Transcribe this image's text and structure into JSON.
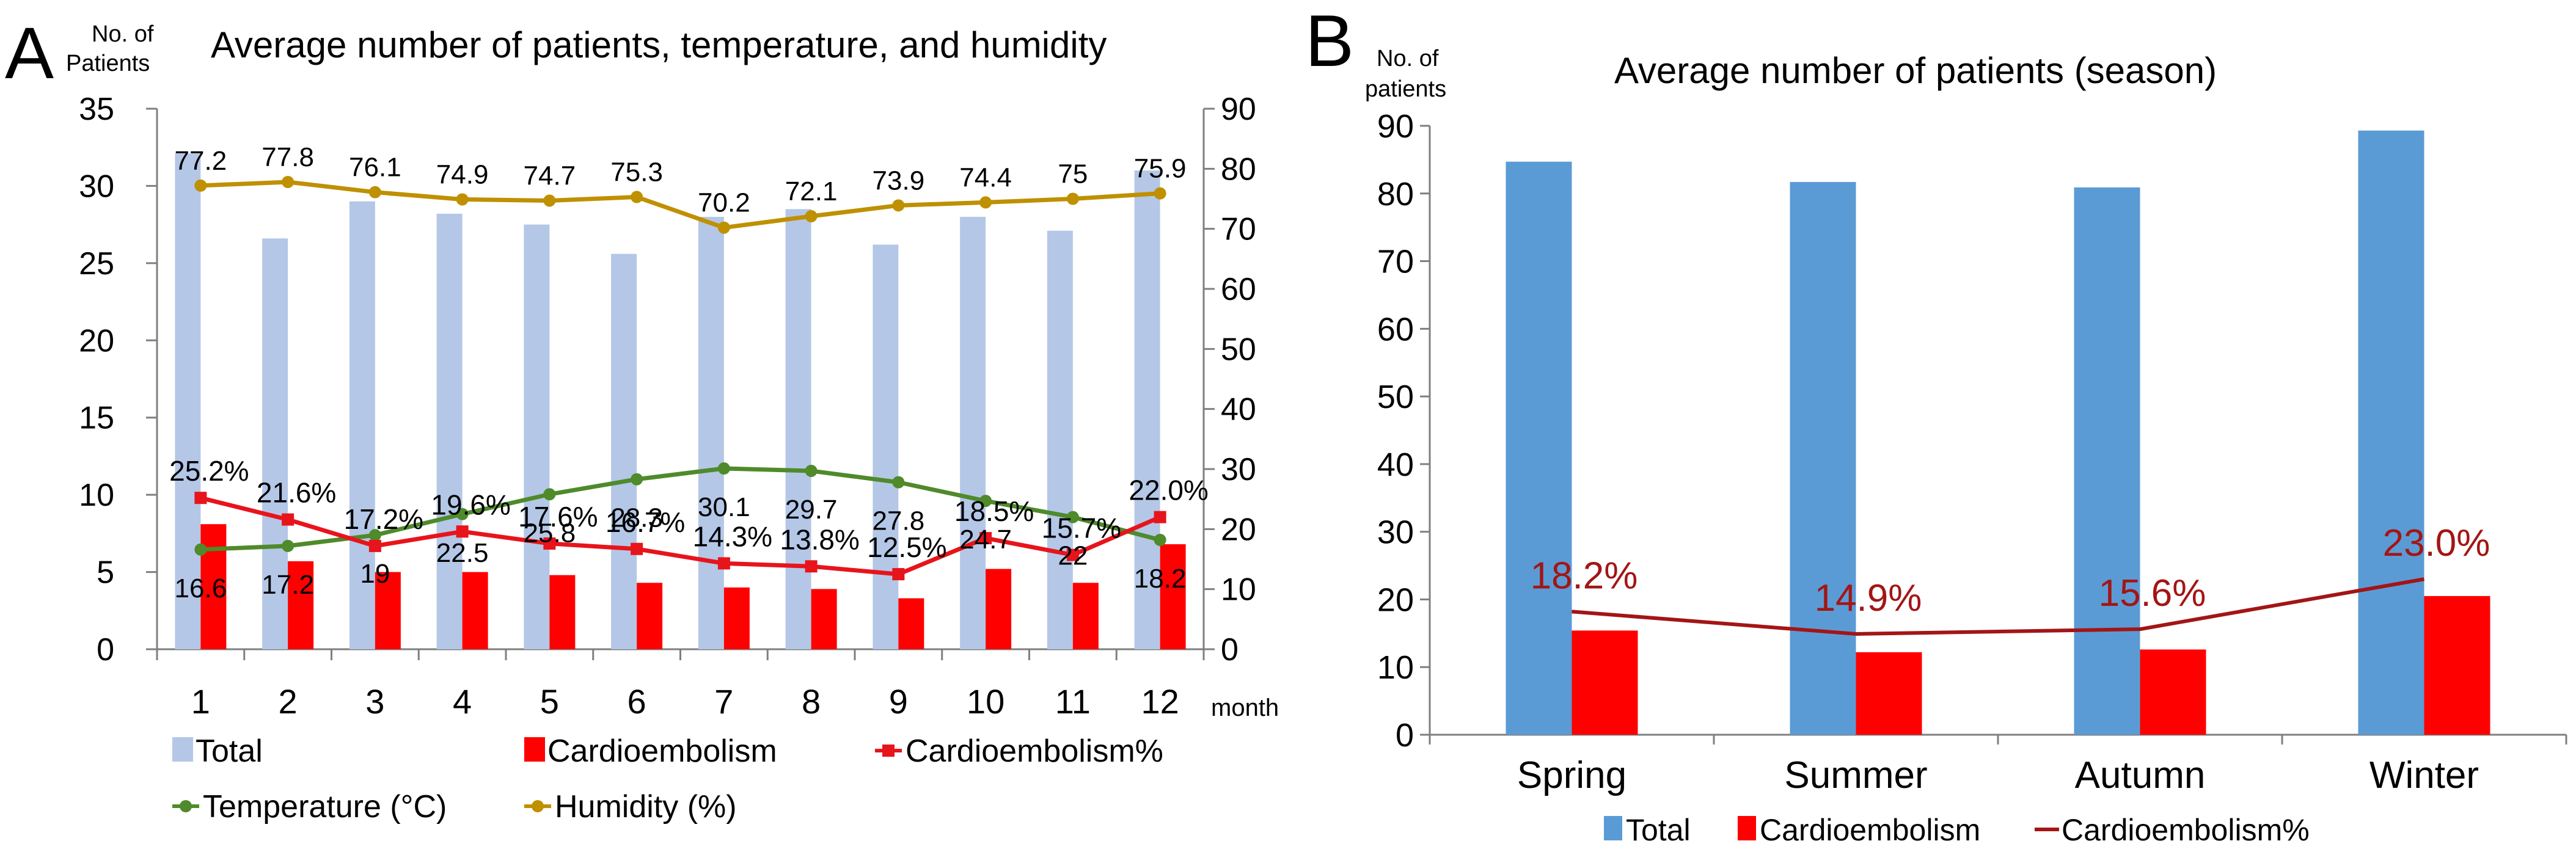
{
  "panels": {
    "a_letter": "A",
    "b_letter": "B"
  },
  "colors": {
    "total_light": "#b4c7e7",
    "total_blue": "#5b9bd5",
    "cardio_red": "#ff0000",
    "cardio_line_red": "#e8141b",
    "cardio_dark_red": "#a31515",
    "temperature_green": "#4f8a2b",
    "humidity_gold": "#bf9000",
    "axis_gray": "#7f7f7f",
    "text": "#000000"
  },
  "chart_data": [
    {
      "type": "bar",
      "title": "Average number of patients, temperature, and humidity",
      "ylabel": "No. of Patients",
      "xlabel": "month",
      "categories": [
        "1",
        "2",
        "3",
        "4",
        "5",
        "6",
        "7",
        "8",
        "9",
        "10",
        "11",
        "12"
      ],
      "y_ticks": [
        "0",
        "5",
        "10",
        "15",
        "20",
        "25",
        "30",
        "35"
      ],
      "ylim": [
        0,
        35
      ],
      "y2_ticks": [
        "0",
        "10",
        "20",
        "30",
        "40",
        "50",
        "60",
        "70",
        "80",
        "90"
      ],
      "y2lim": [
        0,
        90
      ],
      "grid": false,
      "legend_position": "bottom",
      "series": [
        {
          "name": "Total",
          "kind": "bar",
          "axis": "left",
          "values": [
            32.1,
            26.6,
            29.0,
            28.2,
            27.5,
            25.6,
            28.0,
            28.5,
            26.2,
            28.0,
            27.1,
            31.0
          ]
        },
        {
          "name": "Cardioembolism",
          "kind": "bar",
          "axis": "left",
          "values": [
            8.1,
            5.7,
            5.0,
            5.0,
            4.8,
            4.3,
            4.0,
            3.9,
            3.3,
            5.2,
            4.3,
            6.8
          ]
        },
        {
          "name": "Cardioembolism%",
          "kind": "line",
          "axis": "right",
          "marker": "square",
          "values": [
            25.2,
            21.6,
            17.2,
            19.6,
            17.6,
            16.7,
            14.3,
            13.8,
            12.5,
            18.5,
            15.7,
            22.0
          ],
          "labels": [
            "25.2%",
            "21.6%",
            "17.2%",
            "19.6%",
            "17.6%",
            "16.7%",
            "14.3%",
            "13.8%",
            "12.5%",
            "18.5%",
            "15.7%",
            "22.0%"
          ]
        },
        {
          "name": "Temperature (°C)",
          "kind": "line",
          "axis": "right",
          "marker": "circle",
          "values": [
            16.6,
            17.2,
            19,
            22.5,
            25.8,
            28.3,
            30.1,
            29.7,
            27.8,
            24.7,
            22,
            18.2
          ],
          "labels": [
            "16.6",
            "17.2",
            "19",
            "22.5",
            "25.8",
            "28.3",
            "30.1",
            "29.7",
            "27.8",
            "24.7",
            "22",
            "18.2"
          ]
        },
        {
          "name": "Humidity (%)",
          "kind": "line",
          "axis": "right",
          "marker": "circle",
          "values": [
            77.2,
            77.8,
            76.1,
            74.9,
            74.7,
            75.3,
            70.2,
            72.1,
            73.9,
            74.4,
            75,
            75.9
          ],
          "labels": [
            "77.2",
            "77.8",
            "76.1",
            "74.9",
            "74.7",
            "75.3",
            "70.2",
            "72.1",
            "73.9",
            "74.4",
            "75",
            "75.9"
          ]
        }
      ]
    },
    {
      "type": "bar",
      "title": "Average number of patients (season)",
      "ylabel": "No. of patients",
      "xlabel": "",
      "categories": [
        "Spring",
        "Summer",
        "Autumn",
        "Winter"
      ],
      "y_ticks": [
        "0",
        "10",
        "20",
        "30",
        "40",
        "50",
        "60",
        "70",
        "80",
        "90"
      ],
      "ylim": [
        0,
        90
      ],
      "grid": false,
      "legend_position": "bottom",
      "series": [
        {
          "name": "Total",
          "kind": "bar",
          "values": [
            84.7,
            81.7,
            80.9,
            89.3
          ]
        },
        {
          "name": "Cardioembolism",
          "kind": "bar",
          "values": [
            15.4,
            12.2,
            12.6,
            20.5
          ]
        },
        {
          "name": "Cardioembolism%",
          "kind": "line",
          "values": [
            18.2,
            14.9,
            15.6,
            23.0
          ],
          "labels": [
            "18.2%",
            "14.9%",
            "15.6%",
            "23.0%"
          ]
        }
      ]
    }
  ]
}
